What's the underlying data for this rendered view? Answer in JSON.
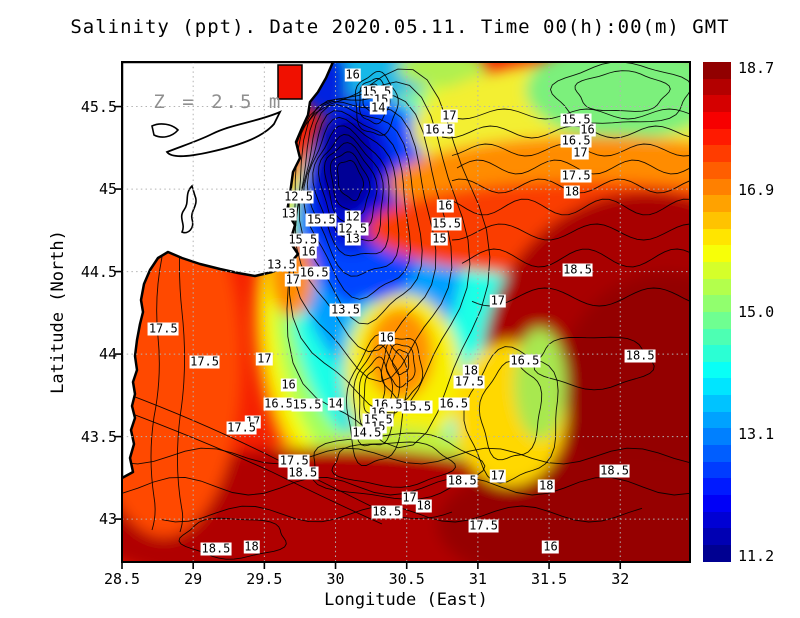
{
  "title": "Salinity (ppt). Date 2020.05.11. Time 00(h):00(m) GMT",
  "annotation": {
    "text": "Z = 2.5 m",
    "lon": 28.72,
    "lat": 45.53,
    "color": "#8f8f8f"
  },
  "axes": {
    "x": {
      "label": "Longitude (East)",
      "range": [
        28.5,
        32.49
      ],
      "ticks": [
        28.5,
        29,
        29.5,
        30,
        30.5,
        31,
        31.5,
        32
      ],
      "tick_labels": [
        "28.5",
        "29",
        "29.5",
        "30",
        "30.5",
        "31",
        "31.5",
        "32"
      ]
    },
    "y": {
      "label": "Latitude (North)",
      "range": [
        42.74,
        45.77
      ],
      "ticks": [
        45.5,
        45,
        44.5,
        44,
        43.5,
        43
      ],
      "tick_labels": [
        "45.5",
        "45",
        "44.5",
        "44",
        "43.5",
        "43"
      ]
    },
    "grid": {
      "shown": true,
      "style": "dotted",
      "color": "#b4b4b4"
    }
  },
  "colorbar": {
    "min": 11.2,
    "max": 18.7,
    "colormap": "jet",
    "segments": 30,
    "tick_labels": [
      "18.7",
      "16.9",
      "15.0",
      "13.1",
      "11.2"
    ],
    "top_color": "#800000",
    "bottom_color": "#000080"
  },
  "chart_data": {
    "type": "heatmap",
    "variable": "Salinity (ppt)",
    "date": "2020.05.11",
    "time": "00(h):00(m) GMT",
    "depth_annotation": "Z = 2.5 m",
    "contour_interval": 0.5,
    "value_range": [
      11.2,
      18.7
    ],
    "land_color": "#ffffff",
    "river_cells": [
      {
        "color": "#f01000",
        "lon": [
          29.6,
          29.76
        ],
        "lat": [
          45.55,
          45.75
        ]
      }
    ],
    "contour_labels": [
      [
        "16",
        30.12,
        45.69
      ],
      [
        "15.5",
        30.29,
        45.59
      ],
      [
        "15",
        30.32,
        45.54
      ],
      [
        "14",
        30.3,
        45.49
      ],
      [
        "17",
        30.8,
        45.44
      ],
      [
        "16.5",
        30.73,
        45.36
      ],
      [
        "15.5",
        31.69,
        45.42
      ],
      [
        "16",
        31.77,
        45.36
      ],
      [
        "16.5",
        31.69,
        45.29
      ],
      [
        "17",
        31.72,
        45.22
      ],
      [
        "17.5",
        31.69,
        45.08
      ],
      [
        "18",
        31.66,
        44.98
      ],
      [
        "16",
        30.77,
        44.9
      ],
      [
        "15.5",
        30.78,
        44.79
      ],
      [
        "15",
        30.73,
        44.7
      ],
      [
        "18.5",
        31.7,
        44.51
      ],
      [
        "18.5",
        32.14,
        43.99
      ],
      [
        "12.5",
        29.74,
        44.95
      ],
      [
        "13",
        29.67,
        44.85
      ],
      [
        "15.5",
        29.9,
        44.81
      ],
      [
        "12",
        30.12,
        44.83
      ],
      [
        "12.5",
        30.12,
        44.76
      ],
      [
        "13",
        30.12,
        44.7
      ],
      [
        "15.5",
        29.77,
        44.69
      ],
      [
        "16",
        29.81,
        44.62
      ],
      [
        "13.5",
        29.62,
        44.54
      ],
      [
        "16.5",
        29.85,
        44.49
      ],
      [
        "17",
        29.7,
        44.45
      ],
      [
        "13.5",
        30.07,
        44.27
      ],
      [
        "17.5",
        28.79,
        44.15
      ],
      [
        "17.5",
        29.08,
        43.95
      ],
      [
        "17",
        29.5,
        43.97
      ],
      [
        "16",
        29.67,
        43.81
      ],
      [
        "16.5",
        29.6,
        43.7
      ],
      [
        "15.5",
        29.8,
        43.69
      ],
      [
        "14",
        30.0,
        43.7
      ],
      [
        "16",
        30.36,
        44.1
      ],
      [
        "16.5",
        30.37,
        43.69
      ],
      [
        "16",
        30.3,
        43.64
      ],
      [
        "15.5",
        30.3,
        43.6
      ],
      [
        "15",
        30.3,
        43.56
      ],
      [
        "14.5",
        30.22,
        43.52
      ],
      [
        "15.5",
        30.57,
        43.68
      ],
      [
        "16.5",
        30.83,
        43.7
      ],
      [
        "17",
        31.14,
        44.32
      ],
      [
        "16.5",
        31.33,
        43.96
      ],
      [
        "18",
        30.95,
        43.9
      ],
      [
        "17.5",
        30.94,
        43.83
      ],
      [
        "17",
        29.42,
        43.59
      ],
      [
        "17.5",
        29.34,
        43.55
      ],
      [
        "17.5",
        29.71,
        43.35
      ],
      [
        "18.5",
        29.77,
        43.28
      ],
      [
        "18.5",
        30.36,
        43.04
      ],
      [
        "17",
        30.52,
        43.13
      ],
      [
        "18",
        30.62,
        43.08
      ],
      [
        "18.5",
        29.16,
        42.82
      ],
      [
        "18",
        29.41,
        42.83
      ],
      [
        "17.5",
        31.04,
        42.96
      ],
      [
        "18.5",
        30.89,
        43.23
      ],
      [
        "17",
        31.14,
        43.26
      ],
      [
        "18",
        31.48,
        43.2
      ],
      [
        "18.5",
        31.96,
        43.29
      ],
      [
        "16",
        31.51,
        42.83
      ]
    ]
  }
}
